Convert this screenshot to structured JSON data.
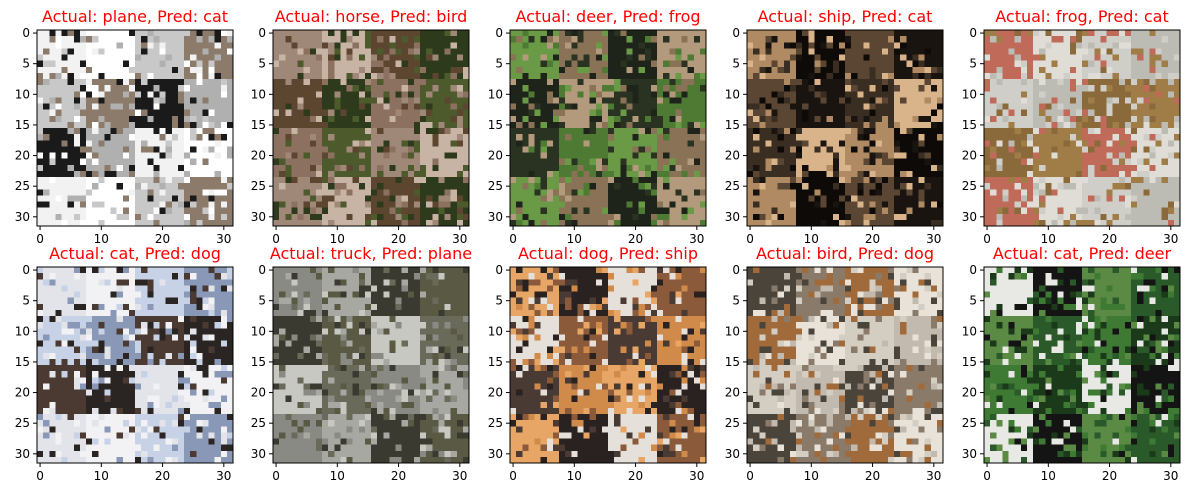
{
  "figure_layout": "2x5",
  "title_color": "#ff0000",
  "chart_data": [
    {
      "type": "image",
      "title": "Actual: plane, Pred: cat",
      "actual": "plane",
      "pred": "cat",
      "xticks": [
        0,
        10,
        20,
        30
      ],
      "yticks": [
        0,
        5,
        10,
        15,
        20,
        25,
        30
      ],
      "xlim": [
        -0.5,
        31.5
      ],
      "ylim": [
        31.5,
        -0.5
      ],
      "image_desc": "dark bird/plane shape on white background with gray textured lower half",
      "palette": [
        "#f2f2f2",
        "#ffffff",
        "#c8c8c8",
        "#8c7a6a",
        "#1a1a1a",
        "#b0b0b0"
      ]
    },
    {
      "type": "image",
      "title": "Actual: horse, Pred: bird",
      "actual": "horse",
      "pred": "bird",
      "xticks": [
        0,
        10,
        20,
        30
      ],
      "yticks": [
        0,
        5,
        10,
        15,
        20,
        25,
        30
      ],
      "xlim": [
        -0.5,
        31.5
      ],
      "ylim": [
        31.5,
        -0.5
      ],
      "image_desc": "light brown horse head against dark green foliage",
      "palette": [
        "#4d5a2c",
        "#a08878",
        "#c8b4a4",
        "#5c4630",
        "#2e3a1c",
        "#8c7060"
      ]
    },
    {
      "type": "image",
      "title": "Actual: deer, Pred: frog",
      "actual": "deer",
      "pred": "frog",
      "xticks": [
        0,
        10,
        20,
        30
      ],
      "yticks": [
        0,
        5,
        10,
        15,
        20,
        25,
        30
      ],
      "xlim": [
        -0.5,
        31.5
      ],
      "ylim": [
        31.5,
        -0.5
      ],
      "image_desc": "deer in green grass with dark surroundings",
      "palette": [
        "#2a3322",
        "#4f7a34",
        "#6a9a46",
        "#8a7256",
        "#1e241a",
        "#b39a7c"
      ]
    },
    {
      "type": "image",
      "title": "Actual: ship, Pred: cat",
      "actual": "ship",
      "pred": "cat",
      "xticks": [
        0,
        10,
        20,
        30
      ],
      "yticks": [
        0,
        5,
        10,
        15,
        20,
        25,
        30
      ],
      "xlim": [
        -0.5,
        31.5
      ],
      "ylim": [
        31.5,
        -0.5
      ],
      "image_desc": "tan sailing ship silhouette on dark background",
      "palette": [
        "#1a1410",
        "#3a2e22",
        "#d9b48a",
        "#b08a62",
        "#0e0a08",
        "#5a4632"
      ]
    },
    {
      "type": "image",
      "title": "Actual: frog, Pred: cat",
      "actual": "frog",
      "pred": "cat",
      "xticks": [
        0,
        10,
        20,
        30
      ],
      "yticks": [
        0,
        5,
        10,
        15,
        20,
        25,
        30
      ],
      "xlim": [
        -0.5,
        31.5
      ],
      "ylim": [
        31.5,
        -0.5
      ],
      "image_desc": "brown frog on pale gray surface with reddish top border",
      "palette": [
        "#d0cec8",
        "#bdbcb4",
        "#8a6a3a",
        "#a07c46",
        "#c06a5a",
        "#e0ddd6"
      ]
    },
    {
      "type": "image",
      "title": "Actual: cat, Pred: dog",
      "actual": "cat",
      "pred": "dog",
      "xticks": [
        0,
        10,
        20,
        30
      ],
      "yticks": [
        0,
        5,
        10,
        15,
        20,
        25,
        30
      ],
      "xlim": [
        -0.5,
        31.5
      ],
      "ylim": [
        31.5,
        -0.5
      ],
      "image_desc": "white cat on bluish surface with dark background",
      "palette": [
        "#f2f2f4",
        "#c8d2e6",
        "#8a98b8",
        "#4a3a32",
        "#2a2422",
        "#e2e4ea"
      ]
    },
    {
      "type": "image",
      "title": "Actual: truck, Pred: plane",
      "actual": "truck",
      "pred": "plane",
      "xticks": [
        0,
        10,
        20,
        30
      ],
      "yticks": [
        0,
        5,
        10,
        15,
        20,
        25,
        30
      ],
      "xlim": [
        -0.5,
        31.5
      ],
      "ylim": [
        31.5,
        -0.5
      ],
      "image_desc": "dark vehicle on gray road with trees behind",
      "palette": [
        "#8a8a84",
        "#a8a8a2",
        "#3a3a30",
        "#5a5a44",
        "#c8c8c2",
        "#6a6a5a"
      ]
    },
    {
      "type": "image",
      "title": "Actual: dog, Pred: ship",
      "actual": "dog",
      "pred": "ship",
      "xticks": [
        0,
        10,
        20,
        30
      ],
      "yticks": [
        0,
        5,
        10,
        15,
        20,
        25,
        30
      ],
      "xlim": [
        -0.5,
        31.5
      ],
      "ylim": [
        31.5,
        -0.5
      ],
      "image_desc": "black and white dog with orange background",
      "palette": [
        "#d08a4a",
        "#e8a666",
        "#2a2220",
        "#e6e0da",
        "#8a5a3a",
        "#4a3a34"
      ]
    },
    {
      "type": "image",
      "title": "Actual: bird, Pred: dog",
      "actual": "bird",
      "pred": "dog",
      "xticks": [
        0,
        10,
        20,
        30
      ],
      "yticks": [
        0,
        5,
        10,
        15,
        20,
        25,
        30
      ],
      "xlim": [
        -0.5,
        31.5
      ],
      "ylim": [
        31.5,
        -0.5
      ],
      "image_desc": "perched bird on branch against beige background",
      "palette": [
        "#d4cec2",
        "#c2baae",
        "#4a443a",
        "#8a7a6a",
        "#a06a3a",
        "#e8e2d8"
      ]
    },
    {
      "type": "image",
      "title": "Actual: cat, Pred: deer",
      "actual": "cat",
      "pred": "deer",
      "xticks": [
        0,
        10,
        20,
        30
      ],
      "yticks": [
        0,
        5,
        10,
        15,
        20,
        25,
        30
      ],
      "xlim": [
        -0.5,
        31.5
      ],
      "ylim": [
        31.5,
        -0.5
      ],
      "image_desc": "black and white cat in green grass",
      "palette": [
        "#2a5a2a",
        "#3e7a34",
        "#1a3a1a",
        "#e8e8e4",
        "#141414",
        "#5a8a44"
      ]
    }
  ]
}
